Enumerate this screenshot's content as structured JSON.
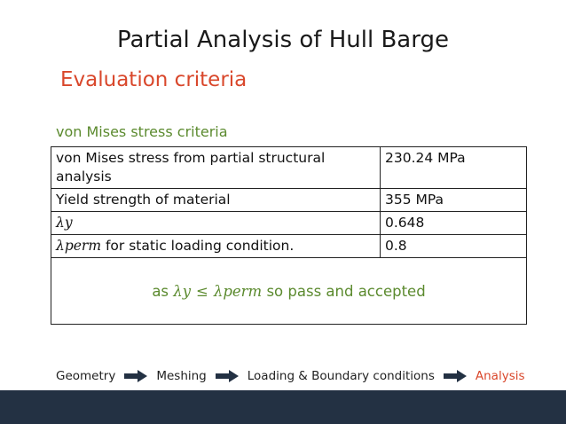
{
  "slide": {
    "title": "Partial Analysis of Hull Barge",
    "subtitle": "Evaluation criteria",
    "section_label": "von Mises stress criteria"
  },
  "table": {
    "rows": [
      {
        "label": "von Mises stress from partial structural analysis",
        "value": "230.24 MPa"
      },
      {
        "label": "Yield strength of material",
        "value": "355 MPa"
      },
      {
        "label": "λy",
        "value": "0.648"
      },
      {
        "label_symbol": "λperm",
        "label_text": " for static loading condition.",
        "value": "0.8"
      }
    ],
    "conclusion": {
      "prefix": "as ",
      "lhs": "λy",
      "operator": "≤",
      "rhs": "λperm",
      "suffix": " so pass and accepted"
    }
  },
  "flow": {
    "steps": [
      "Geometry",
      "Meshing",
      "Loading & Boundary conditions",
      "Analysis"
    ],
    "active": "Analysis",
    "colors": {
      "active": "#d9472b",
      "arrow": "#233143"
    }
  },
  "colors": {
    "title_accent": "#d9472b",
    "section": "#5b8a2e",
    "footer": "#233143"
  }
}
